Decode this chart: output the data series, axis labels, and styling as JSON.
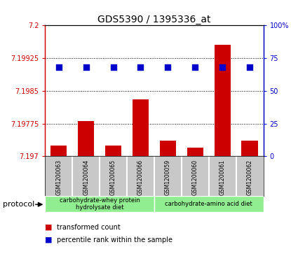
{
  "title": "GDS5390 / 1395336_at",
  "samples": [
    "GSM1200063",
    "GSM1200064",
    "GSM1200065",
    "GSM1200066",
    "GSM1200059",
    "GSM1200060",
    "GSM1200061",
    "GSM1200062"
  ],
  "transformed_count": [
    7.19725,
    7.1978,
    7.19725,
    7.1983,
    7.19735,
    7.1972,
    7.19955,
    7.19735
  ],
  "percentile_rank": [
    68,
    68,
    68,
    68,
    68,
    68,
    68,
    68
  ],
  "ylim_left": [
    7.197,
    7.2
  ],
  "ylim_right": [
    0,
    100
  ],
  "yticks_left": [
    7.197,
    7.19775,
    7.1985,
    7.19925,
    7.2
  ],
  "yticks_right": [
    0,
    25,
    50,
    75,
    100
  ],
  "ytick_labels_left": [
    "7.197",
    "7.19775",
    "7.1985",
    "7.19925",
    "7.2"
  ],
  "ytick_labels_right": [
    "0",
    "25",
    "50",
    "75",
    "100%"
  ],
  "group1_label": "carbohydrate-whey protein\nhydrolysate diet",
  "group2_label": "carbohydrate-amino acid diet",
  "group_color": "#90EE90",
  "bar_color": "#CC0000",
  "dot_color": "#0000CC",
  "bar_width": 0.6,
  "dot_size": 40,
  "sample_bg_color": "#C8C8C8",
  "protocol_label": "protocol",
  "legend_label_1": "transformed count",
  "legend_label_2": "percentile rank within the sample",
  "legend_color_1": "#CC0000",
  "legend_color_2": "#0000CC"
}
